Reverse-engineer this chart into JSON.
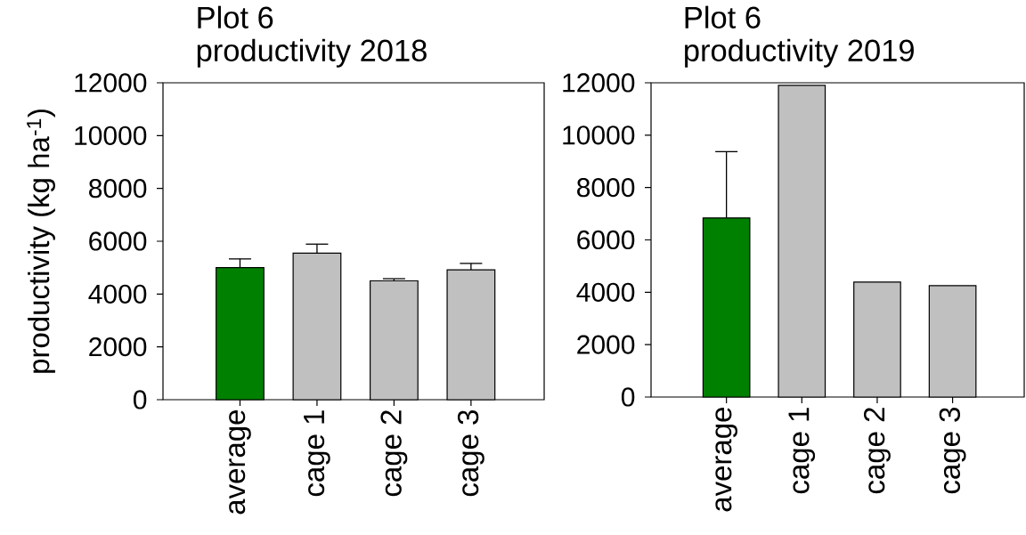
{
  "chart_data": [
    {
      "type": "bar",
      "title": "Plot 6",
      "subtitle": "productivity 2018",
      "ylabel": "productivity (kg ha$^{-1}$)",
      "categories": [
        "average",
        "cage 1",
        "cage 2",
        "cage 3"
      ],
      "values": [
        5000,
        5550,
        4500,
        4920
      ],
      "errors": [
        330,
        340,
        80,
        240
      ],
      "colors": [
        "#008000",
        "#c0c0c0",
        "#c0c0c0",
        "#c0c0c0"
      ],
      "ylim": [
        0,
        12000
      ],
      "yticks": [
        0,
        2000,
        4000,
        6000,
        8000,
        10000,
        12000
      ]
    },
    {
      "type": "bar",
      "title": "Plot 6",
      "subtitle": "productivity 2019",
      "categories": [
        "average",
        "cage 1",
        "cage 2",
        "cage 3"
      ],
      "values": [
        6840,
        11900,
        4390,
        4250
      ],
      "errors": [
        2530,
        null,
        null,
        null
      ],
      "colors": [
        "#008000",
        "#c0c0c0",
        "#c0c0c0",
        "#c0c0c0"
      ],
      "ylim": [
        0,
        12000
      ],
      "yticks": [
        0,
        2000,
        4000,
        6000,
        8000,
        10000,
        12000
      ]
    }
  ]
}
